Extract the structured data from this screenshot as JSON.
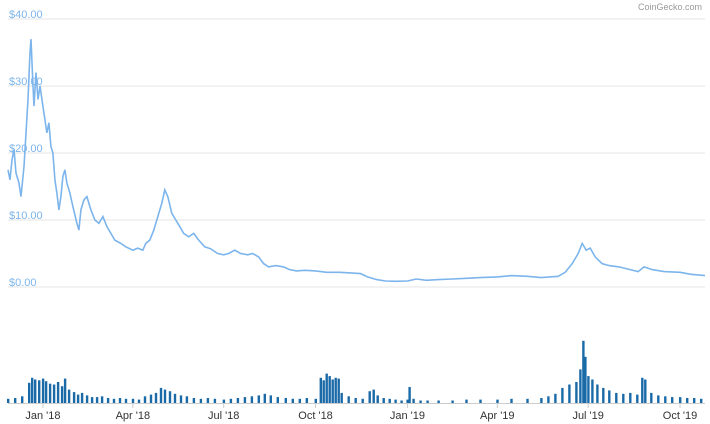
{
  "credit": "CoinGecko.com",
  "colors": {
    "price_line": "#7cb5ec",
    "volume_bar": "#1b6aa8",
    "grid": "#e6e6e6",
    "axis_label": "#7cb5ec",
    "x_label": "#333333"
  },
  "chart_data": [
    {
      "type": "line",
      "title": "",
      "xlabel": "",
      "ylabel": "",
      "ylim": [
        0,
        40
      ],
      "xlim": [
        "2017-11-27",
        "2019-10-26"
      ],
      "y_ticks": [
        "$0.00",
        "$10.00",
        "$20.00",
        "$30.00",
        "$40.00"
      ],
      "y_tick_values": [
        0,
        10,
        20,
        30,
        40
      ],
      "x_ticks": [
        "Jan '18",
        "Apr '18",
        "Jul '18",
        "Oct '18",
        "Jan '19",
        "Apr '19",
        "Jul '19",
        "Oct '19"
      ],
      "x_tick_dates": [
        "2018-01-01",
        "2018-04-01",
        "2018-07-01",
        "2018-10-01",
        "2019-01-01",
        "2019-04-01",
        "2019-07-01",
        "2019-10-01"
      ],
      "grid": true,
      "legend": "none",
      "series": [
        {
          "points": [
            [
              "2017-11-27",
              17.5
            ],
            [
              "2017-11-29",
              16.0
            ],
            [
              "2017-12-01",
              19.0
            ],
            [
              "2017-12-03",
              20.5
            ],
            [
              "2017-12-05",
              17.0
            ],
            [
              "2017-12-08",
              15.5
            ],
            [
              "2017-12-10",
              13.5
            ],
            [
              "2017-12-13",
              18.0
            ],
            [
              "2017-12-15",
              23.0
            ],
            [
              "2017-12-17",
              28.0
            ],
            [
              "2017-12-19",
              35.0
            ],
            [
              "2017-12-20",
              37.0
            ],
            [
              "2017-12-22",
              30.0
            ],
            [
              "2017-12-23",
              27.0
            ],
            [
              "2017-12-25",
              32.0
            ],
            [
              "2017-12-27",
              28.0
            ],
            [
              "2017-12-29",
              30.0
            ],
            [
              "2018-01-01",
              27.0
            ],
            [
              "2018-01-03",
              25.0
            ],
            [
              "2018-01-05",
              23.0
            ],
            [
              "2018-01-07",
              24.5
            ],
            [
              "2018-01-09",
              21.0
            ],
            [
              "2018-01-11",
              20.0
            ],
            [
              "2018-01-13",
              16.0
            ],
            [
              "2018-01-15",
              14.0
            ],
            [
              "2018-01-17",
              11.5
            ],
            [
              "2018-01-19",
              13.5
            ],
            [
              "2018-01-21",
              16.5
            ],
            [
              "2018-01-23",
              17.5
            ],
            [
              "2018-01-25",
              15.5
            ],
            [
              "2018-01-28",
              14.0
            ],
            [
              "2018-01-31",
              12.0
            ],
            [
              "2018-02-04",
              9.5
            ],
            [
              "2018-02-06",
              8.5
            ],
            [
              "2018-02-08",
              11.5
            ],
            [
              "2018-02-11",
              13.0
            ],
            [
              "2018-02-14",
              13.5
            ],
            [
              "2018-02-18",
              11.5
            ],
            [
              "2018-02-22",
              10.0
            ],
            [
              "2018-02-26",
              9.5
            ],
            [
              "2018-03-02",
              10.5
            ],
            [
              "2018-03-06",
              9.0
            ],
            [
              "2018-03-10",
              8.0
            ],
            [
              "2018-03-14",
              7.0
            ],
            [
              "2018-03-20",
              6.5
            ],
            [
              "2018-03-25",
              6.0
            ],
            [
              "2018-04-01",
              5.5
            ],
            [
              "2018-04-06",
              5.8
            ],
            [
              "2018-04-11",
              5.5
            ],
            [
              "2018-04-14",
              6.5
            ],
            [
              "2018-04-18",
              7.0
            ],
            [
              "2018-04-22",
              8.5
            ],
            [
              "2018-04-26",
              10.5
            ],
            [
              "2018-04-30",
              12.5
            ],
            [
              "2018-05-03",
              14.5
            ],
            [
              "2018-05-06",
              13.5
            ],
            [
              "2018-05-10",
              11.0
            ],
            [
              "2018-05-14",
              10.0
            ],
            [
              "2018-05-18",
              9.0
            ],
            [
              "2018-05-22",
              8.0
            ],
            [
              "2018-05-27",
              7.5
            ],
            [
              "2018-06-01",
              8.0
            ],
            [
              "2018-06-06",
              7.0
            ],
            [
              "2018-06-12",
              6.0
            ],
            [
              "2018-06-18",
              5.7
            ],
            [
              "2018-06-25",
              5.0
            ],
            [
              "2018-07-01",
              4.8
            ],
            [
              "2018-07-06",
              5.0
            ],
            [
              "2018-07-12",
              5.5
            ],
            [
              "2018-07-18",
              5.0
            ],
            [
              "2018-07-25",
              4.8
            ],
            [
              "2018-07-30",
              5.0
            ],
            [
              "2018-08-05",
              4.5
            ],
            [
              "2018-08-10",
              3.5
            ],
            [
              "2018-08-15",
              3.0
            ],
            [
              "2018-08-22",
              3.2
            ],
            [
              "2018-08-30",
              3.0
            ],
            [
              "2018-09-05",
              2.6
            ],
            [
              "2018-09-12",
              2.4
            ],
            [
              "2018-09-20",
              2.5
            ],
            [
              "2018-10-01",
              2.4
            ],
            [
              "2018-10-12",
              2.2
            ],
            [
              "2018-10-25",
              2.2
            ],
            [
              "2018-11-05",
              2.1
            ],
            [
              "2018-11-15",
              2.0
            ],
            [
              "2018-11-22",
              1.5
            ],
            [
              "2018-12-01",
              1.1
            ],
            [
              "2018-12-10",
              0.9
            ],
            [
              "2018-12-20",
              0.85
            ],
            [
              "2019-01-01",
              0.9
            ],
            [
              "2019-01-10",
              1.2
            ],
            [
              "2019-01-20",
              1.0
            ],
            [
              "2019-02-01",
              1.1
            ],
            [
              "2019-02-15",
              1.2
            ],
            [
              "2019-03-01",
              1.3
            ],
            [
              "2019-03-15",
              1.4
            ],
            [
              "2019-04-01",
              1.5
            ],
            [
              "2019-04-15",
              1.7
            ],
            [
              "2019-05-01",
              1.6
            ],
            [
              "2019-05-15",
              1.4
            ],
            [
              "2019-06-01",
              1.6
            ],
            [
              "2019-06-08",
              2.2
            ],
            [
              "2019-06-15",
              3.5
            ],
            [
              "2019-06-21",
              5.0
            ],
            [
              "2019-06-25",
              6.5
            ],
            [
              "2019-06-29",
              5.5
            ],
            [
              "2019-07-03",
              5.8
            ],
            [
              "2019-07-08",
              4.5
            ],
            [
              "2019-07-15",
              3.5
            ],
            [
              "2019-07-22",
              3.2
            ],
            [
              "2019-08-01",
              3.0
            ],
            [
              "2019-08-12",
              2.6
            ],
            [
              "2019-08-20",
              2.3
            ],
            [
              "2019-08-26",
              3.0
            ],
            [
              "2019-09-03",
              2.6
            ],
            [
              "2019-09-15",
              2.3
            ],
            [
              "2019-10-01",
              2.2
            ],
            [
              "2019-10-12",
              1.9
            ],
            [
              "2019-10-26",
              1.7
            ]
          ]
        }
      ]
    },
    {
      "type": "bar",
      "title": "",
      "xlabel": "",
      "ylabel": "",
      "ylim": [
        0,
        100
      ],
      "xlim": [
        "2017-11-27",
        "2019-10-26"
      ],
      "grid": false,
      "legend": "none",
      "series": [
        {
          "bars": [
            [
              "2017-11-27",
              5
            ],
            [
              "2017-12-04",
              6
            ],
            [
              "2017-12-11",
              8
            ],
            [
              "2017-12-18",
              24
            ],
            [
              "2017-12-21",
              30
            ],
            [
              "2017-12-24",
              28
            ],
            [
              "2017-12-28",
              27
            ],
            [
              "2018-01-01",
              29
            ],
            [
              "2018-01-04",
              26
            ],
            [
              "2018-01-08",
              23
            ],
            [
              "2018-01-12",
              22
            ],
            [
              "2018-01-16",
              25
            ],
            [
              "2018-01-20",
              20
            ],
            [
              "2018-01-23",
              29
            ],
            [
              "2018-01-27",
              16
            ],
            [
              "2018-02-01",
              13
            ],
            [
              "2018-02-05",
              10
            ],
            [
              "2018-02-09",
              12
            ],
            [
              "2018-02-14",
              9
            ],
            [
              "2018-02-19",
              7
            ],
            [
              "2018-02-24",
              7
            ],
            [
              "2018-03-01",
              8
            ],
            [
              "2018-03-07",
              6
            ],
            [
              "2018-03-13",
              5
            ],
            [
              "2018-03-19",
              6
            ],
            [
              "2018-03-25",
              5
            ],
            [
              "2018-04-01",
              5
            ],
            [
              "2018-04-07",
              4
            ],
            [
              "2018-04-13",
              8
            ],
            [
              "2018-04-19",
              10
            ],
            [
              "2018-04-24",
              12
            ],
            [
              "2018-04-29",
              18
            ],
            [
              "2018-05-03",
              16
            ],
            [
              "2018-05-08",
              14
            ],
            [
              "2018-05-13",
              11
            ],
            [
              "2018-05-19",
              9
            ],
            [
              "2018-05-25",
              8
            ],
            [
              "2018-06-01",
              6
            ],
            [
              "2018-06-08",
              5
            ],
            [
              "2018-06-15",
              6
            ],
            [
              "2018-06-22",
              5
            ],
            [
              "2018-07-01",
              4
            ],
            [
              "2018-07-08",
              5
            ],
            [
              "2018-07-15",
              6
            ],
            [
              "2018-07-22",
              7
            ],
            [
              "2018-07-29",
              8
            ],
            [
              "2018-08-05",
              9
            ],
            [
              "2018-08-11",
              11
            ],
            [
              "2018-08-17",
              9
            ],
            [
              "2018-08-24",
              7
            ],
            [
              "2018-09-01",
              6
            ],
            [
              "2018-09-08",
              5
            ],
            [
              "2018-09-15",
              5
            ],
            [
              "2018-09-22",
              6
            ],
            [
              "2018-10-01",
              5
            ],
            [
              "2018-10-06",
              30
            ],
            [
              "2018-10-09",
              27
            ],
            [
              "2018-10-12",
              35
            ],
            [
              "2018-10-15",
              32
            ],
            [
              "2018-10-18",
              28
            ],
            [
              "2018-10-21",
              30
            ],
            [
              "2018-10-24",
              29
            ],
            [
              "2018-10-27",
              12
            ],
            [
              "2018-11-03",
              8
            ],
            [
              "2018-11-10",
              6
            ],
            [
              "2018-11-17",
              5
            ],
            [
              "2018-11-24",
              14
            ],
            [
              "2018-11-28",
              16
            ],
            [
              "2018-12-02",
              9
            ],
            [
              "2018-12-08",
              6
            ],
            [
              "2018-12-14",
              5
            ],
            [
              "2018-12-20",
              4
            ],
            [
              "2018-12-26",
              3
            ],
            [
              "2019-01-01",
              4
            ],
            [
              "2019-01-03",
              19
            ],
            [
              "2019-01-07",
              5
            ],
            [
              "2019-01-14",
              3
            ],
            [
              "2019-01-21",
              3
            ],
            [
              "2019-02-01",
              3
            ],
            [
              "2019-02-15",
              3
            ],
            [
              "2019-03-01",
              4
            ],
            [
              "2019-03-15",
              4
            ],
            [
              "2019-04-01",
              4
            ],
            [
              "2019-04-15",
              5
            ],
            [
              "2019-05-01",
              5
            ],
            [
              "2019-05-15",
              6
            ],
            [
              "2019-05-22",
              8
            ],
            [
              "2019-05-29",
              11
            ],
            [
              "2019-06-05",
              18
            ],
            [
              "2019-06-12",
              22
            ],
            [
              "2019-06-19",
              25
            ],
            [
              "2019-06-23",
              40
            ],
            [
              "2019-06-26",
              74
            ],
            [
              "2019-06-28",
              55
            ],
            [
              "2019-07-01",
              32
            ],
            [
              "2019-07-05",
              28
            ],
            [
              "2019-07-10",
              22
            ],
            [
              "2019-07-16",
              18
            ],
            [
              "2019-07-22",
              15
            ],
            [
              "2019-07-29",
              12
            ],
            [
              "2019-08-05",
              11
            ],
            [
              "2019-08-12",
              12
            ],
            [
              "2019-08-19",
              10
            ],
            [
              "2019-08-24",
              30
            ],
            [
              "2019-08-27",
              28
            ],
            [
              "2019-09-02",
              12
            ],
            [
              "2019-09-09",
              9
            ],
            [
              "2019-09-16",
              8
            ],
            [
              "2019-09-23",
              7
            ],
            [
              "2019-10-01",
              7
            ],
            [
              "2019-10-08",
              6
            ],
            [
              "2019-10-15",
              6
            ],
            [
              "2019-10-22",
              5
            ]
          ]
        }
      ]
    }
  ]
}
